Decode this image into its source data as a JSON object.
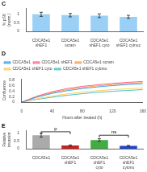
{
  "chart_data": [
    {
      "type": "bar",
      "title": "C",
      "categories": [
        "CDCA5e1\nshEF1",
        "CDCA5e1\nscram",
        "CDCA5e1\nshEF1 cyto",
        "CDCA5e1\nshEF1 cytnuc"
      ],
      "values": [
        1.0,
        0.95,
        0.92,
        0.85
      ],
      "errors": [
        0.12,
        0.1,
        0.11,
        0.09
      ],
      "ylabel": "% pS6\n(norm.)",
      "ylim": [
        0,
        1.35
      ],
      "yticks": [
        0,
        0.5,
        1
      ],
      "grid": false
    },
    {
      "type": "line",
      "title": "D",
      "x": [
        0,
        20,
        40,
        60,
        80,
        100,
        120,
        140,
        160
      ],
      "series": [
        {
          "name": "CDCA5e1",
          "values": [
            0.0,
            0.18,
            0.32,
            0.42,
            0.5,
            0.56,
            0.61,
            0.65,
            0.68
          ]
        },
        {
          "name": "CDCA5e1 shEF1",
          "values": [
            0.0,
            0.22,
            0.38,
            0.5,
            0.58,
            0.64,
            0.69,
            0.73,
            0.76
          ]
        },
        {
          "name": "CDCA5e1 scram",
          "values": [
            0.0,
            0.2,
            0.35,
            0.46,
            0.54,
            0.6,
            0.65,
            0.69,
            0.72
          ]
        },
        {
          "name": "CDCA5e1 shEF1 cyto",
          "values": [
            0.0,
            0.12,
            0.22,
            0.3,
            0.37,
            0.42,
            0.46,
            0.49,
            0.52
          ]
        },
        {
          "name": "CDCA5e1 shEF1 cytonu",
          "values": [
            0.0,
            0.1,
            0.18,
            0.25,
            0.31,
            0.36,
            0.4,
            0.43,
            0.46
          ]
        }
      ],
      "xlabel": "Hours after treated (h)",
      "ylabel": "Confluence",
      "xlim": [
        0,
        160
      ],
      "xticks": [
        0,
        40,
        80,
        120,
        160
      ],
      "ylim": [
        0,
        0.85
      ],
      "yticks": [
        0,
        0.2,
        0.4,
        0.6,
        0.8
      ],
      "grid": false,
      "legend": "upper left"
    },
    {
      "type": "bar",
      "title": "E",
      "categories": [
        "CDCA5e1",
        "CDCA5e1\nshEF1",
        "CDCA5e1\nshEF1\ncyto",
        "CDCA5e1\nshEF1\ncytonu"
      ],
      "values": [
        0.85,
        0.2,
        0.55,
        0.18
      ],
      "errors": [
        0.12,
        0.04,
        0.08,
        0.03
      ],
      "colors": [
        "#aaaaaa",
        "#cc2222",
        "#44aa44",
        "#2244cc"
      ],
      "ylabel": "Relative\ninvasion",
      "ylim": [
        0,
        1.15
      ],
      "yticks": [
        0,
        0.5,
        1
      ],
      "grid": false,
      "annotations": [
        {
          "text": "p",
          "x": [
            "CDCA5e1",
            "CDCA5e1\nshEF1"
          ],
          "y": 0.92
        },
        {
          "text": "ns",
          "x": [
            "CDCA5e1\nshEF1\ncyto",
            "CDCA5e1\nshEF1\ncytonu"
          ],
          "y": 0.7
        }
      ]
    }
  ]
}
